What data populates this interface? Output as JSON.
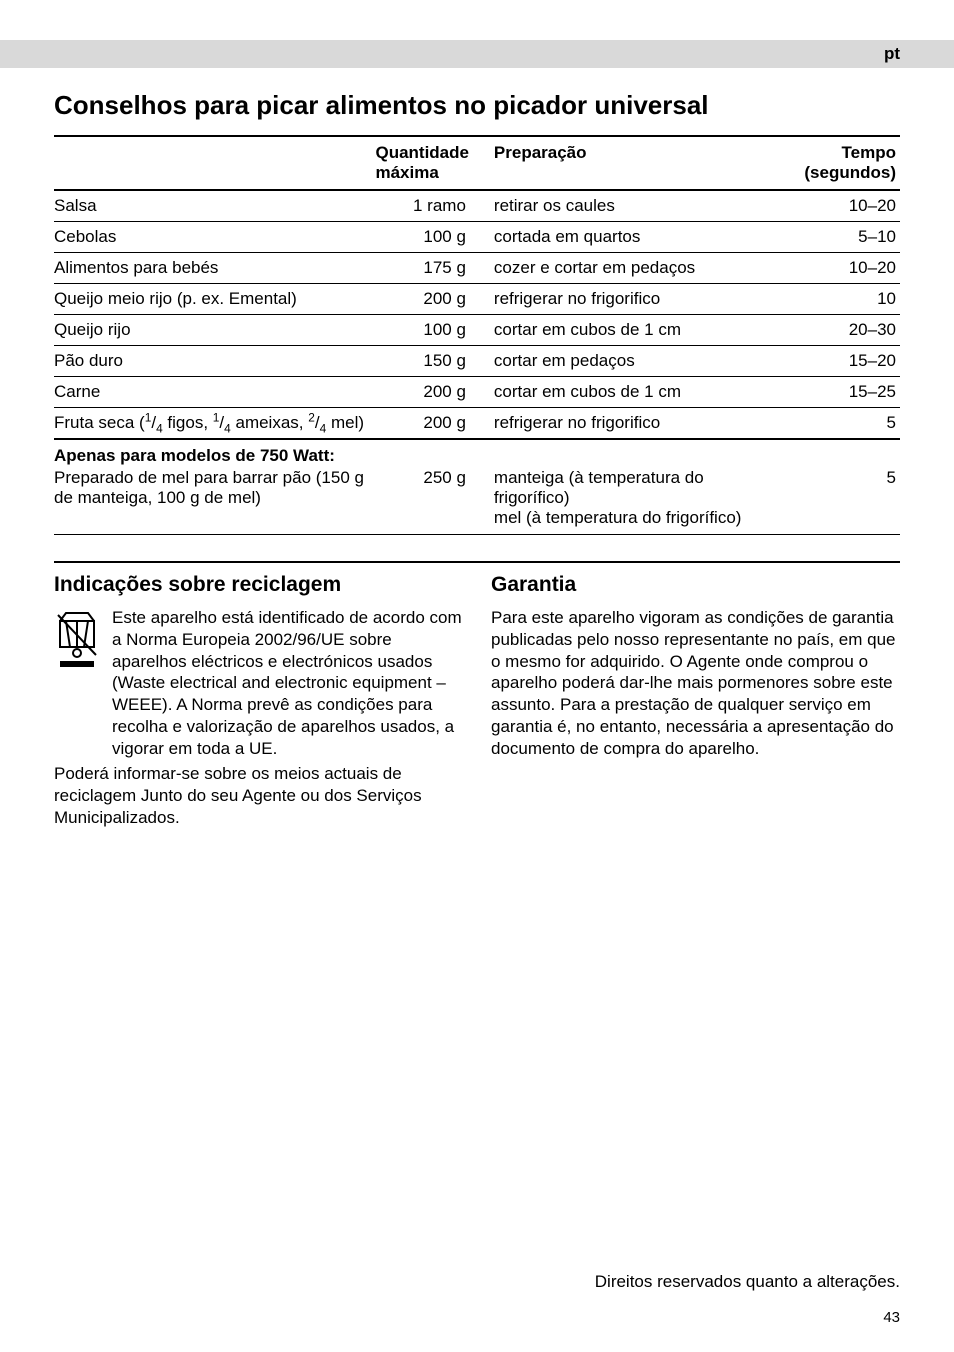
{
  "lang_tag": "pt",
  "title": "Conselhos para picar alimentos no picador universal",
  "table": {
    "headers": {
      "item": "",
      "qty": "Quantidade máxima",
      "prep": "Preparação",
      "time": "Tempo (segundos)"
    },
    "rows": [
      {
        "item": "Salsa",
        "qty": "1 ramo",
        "prep": "retirar os caules",
        "time": "10–20"
      },
      {
        "item": "Cebolas",
        "qty": "100 g",
        "prep": "cortada em quartos",
        "time": "5–10"
      },
      {
        "item": "Alimentos para bebés",
        "qty": "175 g",
        "prep": "cozer e cortar em pedaços",
        "time": "10–20"
      },
      {
        "item": "Queijo meio rijo (p. ex. Emental)",
        "qty": "200 g",
        "prep": "refrigerar no frigorifico",
        "time": "10"
      },
      {
        "item": "Queijo rijo",
        "qty": "100 g",
        "prep": "cortar em cubos de 1 cm",
        "time": "20–30"
      },
      {
        "item": "Pão duro",
        "qty": "150 g",
        "prep": "cortar em pedaços",
        "time": "15–20"
      },
      {
        "item": "Carne",
        "qty": "200 g",
        "prep": "cortar em cubos de 1 cm",
        "time": "15–25"
      },
      {
        "item_html": "Fruta seca (<span class='frac'><sup>1</sup>/<sub>4</sub></span> figos, <span class='frac'><sup>1</sup>/<sub>4</sub></span> ameixas, <span class='frac'><sup>2</sup>/<sub>4</sub></span> mel)",
        "qty": "200 g",
        "prep": "refrigerar no frigorifico",
        "time": "5"
      }
    ]
  },
  "model_block": {
    "heading": "Apenas para modelos de 750 Watt:",
    "row": {
      "item": "Preparado de mel para barrar pão (150 g de manteiga, 100 g de mel)",
      "qty": "250 g",
      "prep": "manteiga (à temperatura do frigorífico)\nmel (à temperatura do frigorífico)",
      "time": "5"
    }
  },
  "left_col": {
    "heading": "Indicações sobre reciclagem",
    "para1": "Este aparelho está identificado de acordo com a Norma Europeia 2002/96/UE sobre aparelhos eléctricos e electrónicos usados (Waste electrical and electronic equipment – WEEE). A Norma prevê as condições para recolha e valorização de aparelhos usados, a vigorar em toda a UE.",
    "para2": "Poderá informar-se sobre os meios actuais de reciclagem Junto do seu Agente ou dos Serviços Municipalizados."
  },
  "right_col": {
    "heading": "Garantia",
    "para": "Para este aparelho vigoram as condições de garantia publicadas pelo nosso representante no país, em que o mesmo for adquirido. O Agente onde comprou o aparelho poderá dar-lhe mais pormenores sobre este assunto. Para a prestação de qualquer serviço em garantia é, no entanto, necessária a apresentação do documento de compra do aparelho."
  },
  "rights_reserved": "Direitos reservados quanto a alterações.",
  "page_number": "43"
}
